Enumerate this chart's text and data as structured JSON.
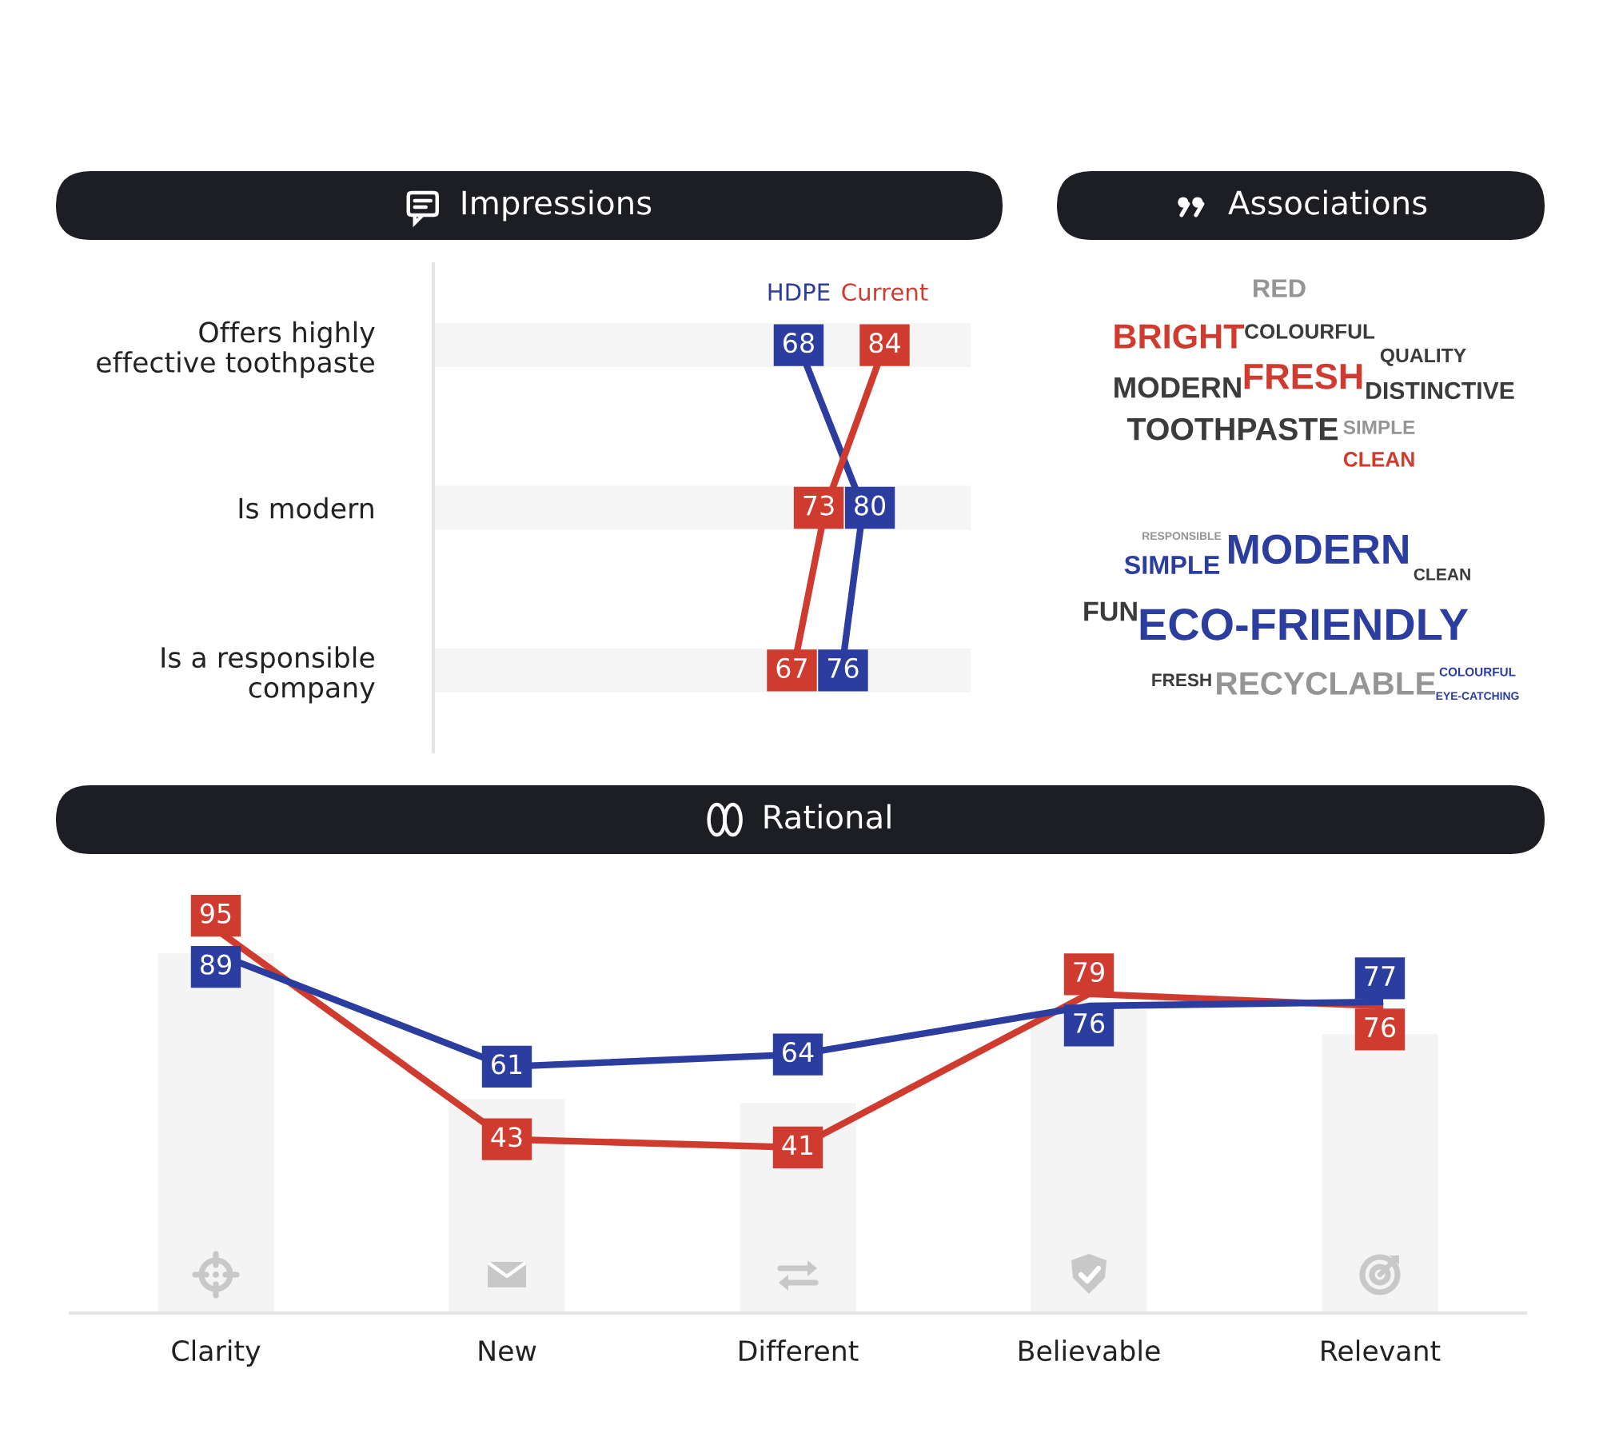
{
  "chart_data": [
    {
      "type": "line",
      "orientation": "horizontal",
      "title": "Impressions",
      "categories": [
        "Offers highly\neffective toothpaste",
        "Is modern",
        "Is a responsible\ncompany"
      ],
      "xlim": [
        0,
        100
      ],
      "tick_labels": "y",
      "series": [
        {
          "type": "bar",
          "color": "#f5f5f5",
          "values": [
            100,
            100,
            100
          ]
        },
        {
          "name": "HDPE",
          "color": "#2b3d9f",
          "values": [
            68,
            80,
            76
          ],
          "value_labels": [
            "68",
            "80",
            "76"
          ]
        },
        {
          "name": "Current",
          "color": "#cf3b2e",
          "values": [
            84,
            73,
            67
          ],
          "value_labels": [
            "84",
            "73",
            "67"
          ]
        }
      ]
    },
    {
      "type": "other",
      "title": "Associations",
      "annotations": [
        "RED",
        "BRIGHT",
        "COLOURFUL",
        "QUALITY",
        "MODERN",
        "FRESH",
        "DISTINCTIVE",
        "TOOTHPASTE",
        "SIMPLE",
        "CLEAN",
        "RESPONSIBLE",
        "SIMPLE",
        "MODERN",
        "CLEAN",
        "FUN",
        "ECO-FRIENDLY",
        "FRESH",
        "RECYCLABLE",
        "COLOURFUL",
        "EYE-CATCHING"
      ]
    },
    {
      "type": "line",
      "title": "Rational",
      "categories": [
        "Clarity",
        "New",
        "Different",
        "Believable",
        "Relevant"
      ],
      "tick_labels": "x",
      "series": [
        {
          "type": "bar",
          "color": "#f4f4f4",
          "values": [
            89,
            53,
            52,
            75,
            69
          ]
        },
        {
          "color": "#cf3b2e",
          "values": [
            95,
            43,
            41,
            79,
            76
          ],
          "value_labels": [
            "95",
            "43",
            "41",
            "79",
            "76"
          ]
        },
        {
          "color": "#2b3d9f",
          "values": [
            89,
            61,
            64,
            76,
            77
          ],
          "value_labels": [
            "89",
            "61",
            "64",
            "76",
            "77"
          ]
        }
      ]
    }
  ]
}
